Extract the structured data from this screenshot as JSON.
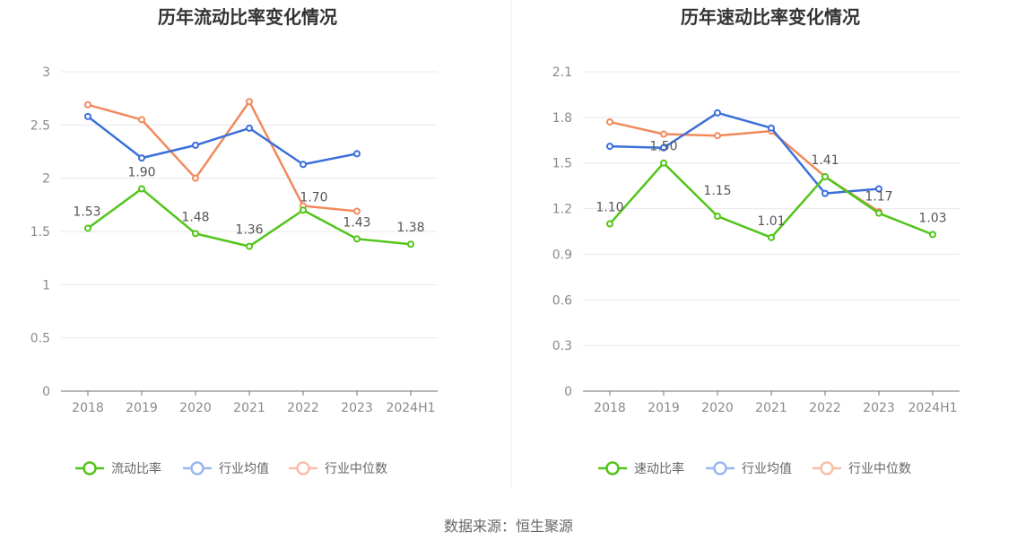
{
  "footer": {
    "source": "数据来源：恒生聚源"
  },
  "chart_data": [
    {
      "type": "line",
      "title": "历年流动比率变化情况",
      "categories": [
        "2018",
        "2019",
        "2020",
        "2021",
        "2022",
        "2023",
        "2024H1"
      ],
      "ylim": [
        0,
        3
      ],
      "yticks": [
        "0",
        "0.5",
        "1",
        "1.5",
        "2",
        "2.5",
        "3"
      ],
      "grid": true,
      "legend_position": "bottom",
      "series": [
        {
          "name": "流动比率",
          "color": "#52c41a",
          "values": [
            1.53,
            1.9,
            1.48,
            1.36,
            1.7,
            1.43,
            1.38
          ],
          "labels": [
            "1.53",
            "1.90",
            "1.48",
            "1.36",
            "1.70",
            "1.43",
            "1.38"
          ]
        },
        {
          "name": "行业均值",
          "color": "#3b6fd9",
          "values": [
            2.58,
            2.19,
            2.31,
            2.47,
            2.13,
            2.23,
            null
          ]
        },
        {
          "name": "行业中位数",
          "color": "#f08a5d",
          "values": [
            2.69,
            2.55,
            2.0,
            2.72,
            1.74,
            1.69,
            null
          ]
        }
      ]
    },
    {
      "type": "line",
      "title": "历年速动比率变化情况",
      "categories": [
        "2018",
        "2019",
        "2020",
        "2021",
        "2022",
        "2023",
        "2024H1"
      ],
      "ylim": [
        0,
        2.1
      ],
      "yticks": [
        "0",
        "0.3",
        "0.6",
        "0.9",
        "1.2",
        "1.5",
        "1.8",
        "2.1"
      ],
      "grid": true,
      "legend_position": "bottom",
      "series": [
        {
          "name": "速动比率",
          "color": "#52c41a",
          "values": [
            1.1,
            1.5,
            1.15,
            1.01,
            1.41,
            1.17,
            1.03
          ],
          "labels": [
            "1.10",
            "1.50",
            "1.15",
            "1.01",
            "1.41",
            "1.17",
            "1.03"
          ]
        },
        {
          "name": "行业均值",
          "color": "#3b6fd9",
          "values": [
            1.61,
            1.6,
            1.83,
            1.73,
            1.3,
            1.33,
            null
          ]
        },
        {
          "name": "行业中位数",
          "color": "#f08a5d",
          "values": [
            1.77,
            1.69,
            1.68,
            1.71,
            1.41,
            1.18,
            null
          ]
        }
      ]
    }
  ]
}
